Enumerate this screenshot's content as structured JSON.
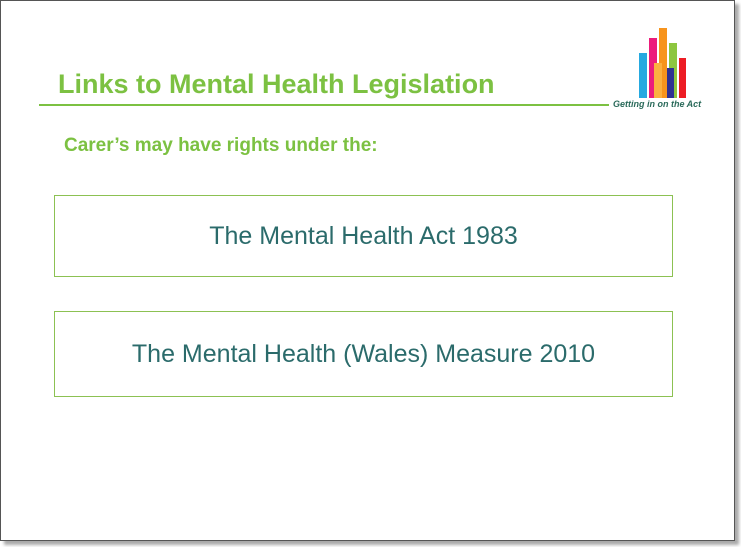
{
  "header": {
    "title": "Links to Mental Health Legislation",
    "logo_caption": "Getting in on the Act"
  },
  "intro": "Carer’s may have rights under the:",
  "items": [
    "The Mental Health Act 1983",
    "The Mental Health (Wales) Measure 2010"
  ]
}
